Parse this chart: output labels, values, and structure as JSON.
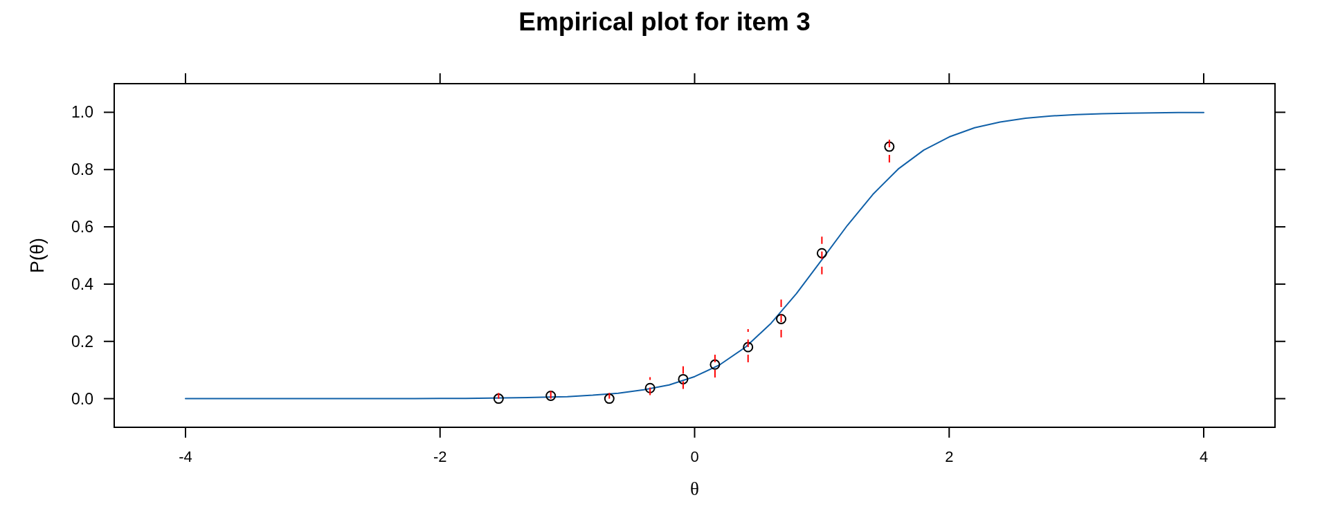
{
  "chart_data": {
    "type": "line",
    "title": "Empirical plot for item 3",
    "xlabel": "θ",
    "ylabel": "P(θ)",
    "xlim": [
      -4.56,
      4.56
    ],
    "ylim": [
      -0.1,
      1.1
    ],
    "xticks": [
      -4,
      -2,
      0,
      2,
      4
    ],
    "yticks": [
      {
        "value": 0,
        "label": "0.0"
      },
      {
        "value": 0.2,
        "label": "0.2"
      },
      {
        "value": 0.4,
        "label": "0.4"
      },
      {
        "value": 0.6,
        "label": "0.6"
      },
      {
        "value": 0.8,
        "label": "0.8"
      },
      {
        "value": 1,
        "label": "1.0"
      }
    ],
    "series": [
      {
        "color": "#1060a8",
        "x": [
          -4,
          -3.8,
          -3.6,
          -3.4,
          -3.2,
          -3,
          -2.8,
          -2.6,
          -2.4,
          -2.2,
          -2,
          -1.8,
          -1.6,
          -1.4,
          -1.2,
          -1,
          -0.8,
          -0.6,
          -0.4,
          -0.2,
          0,
          0.2,
          0.4,
          0.6,
          0.8,
          1,
          1.2,
          1.4,
          1.6,
          1.8,
          2,
          2.2,
          2.4,
          2.6,
          2.8,
          3,
          3.2,
          3.4,
          3.6,
          3.8,
          4
        ],
        "values": [
          0,
          0,
          0,
          0,
          0,
          0,
          0,
          0,
          0,
          0,
          0.001,
          0.001,
          0.002,
          0.003,
          0.005,
          0.007,
          0.012,
          0.019,
          0.031,
          0.048,
          0.077,
          0.119,
          0.18,
          0.263,
          0.367,
          0.485,
          0.605,
          0.713,
          0.802,
          0.868,
          0.914,
          0.946,
          0.966,
          0.979,
          0.987,
          0.992,
          0.995,
          0.997,
          0.998,
          0.999,
          0.999
        ]
      },
      {
        "type": "scatter",
        "color": "#000000",
        "marker": "circle",
        "x": [
          -1.54,
          -1.13,
          -0.67,
          -0.35,
          -0.09,
          0.16,
          0.42,
          0.68,
          1.0,
          1.53
        ],
        "values": [
          0,
          0.01,
          0,
          0.037,
          0.068,
          0.119,
          0.18,
          0.278,
          0.508,
          0.88
        ],
        "errors": [
          [
            0,
            0.02
          ],
          [
            0,
            0.028
          ],
          [
            0,
            0.02
          ],
          [
            0.012,
            0.075
          ],
          [
            0.034,
            0.113
          ],
          [
            0.074,
            0.156
          ],
          [
            0.127,
            0.243
          ],
          [
            0.214,
            0.346
          ],
          [
            0.434,
            0.566
          ],
          [
            0.825,
            0.905
          ]
        ]
      }
    ]
  }
}
